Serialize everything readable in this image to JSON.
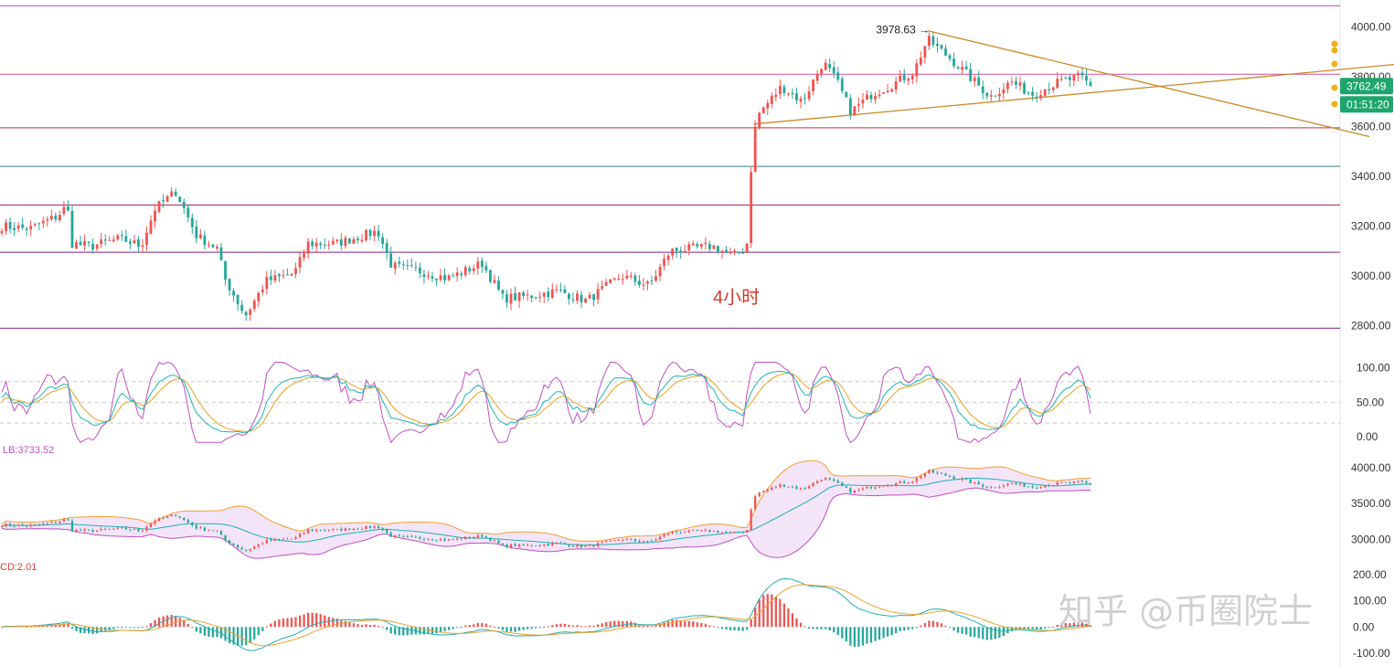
{
  "annotations": {
    "timeframe": "4小时",
    "high_label": "3978.63 →",
    "watermark": "知乎 @币圈院士",
    "current_price": "3762.49",
    "countdown": "01:51:20"
  },
  "colors": {
    "up": "#ef5350",
    "down": "#26a69a",
    "trendline": "#c9892a",
    "watermark": "#d0d0d0",
    "price_tag": "#1ea66e",
    "kdj_k": "#1fb5b5",
    "kdj_d": "#e8a020",
    "kdj_j": "#c050c0",
    "boll_fill": "#f3e4f8",
    "boll_upper": "#f0a030",
    "boll_lower": "#c050c0",
    "boll_mid": "#20b0b0",
    "macd_dif": "#20b0b0",
    "macd_dea": "#f0a030"
  },
  "chart_data": [
    {
      "type": "candlestick",
      "name": "price-4h",
      "y_ticks": [
        "4000.00",
        "3800.00",
        "3600.00",
        "3400.00",
        "3200.00",
        "3000.00",
        "2800.00"
      ],
      "ylim": [
        2780,
        4090
      ],
      "high_value": 3978.63,
      "last_value": 3762.49,
      "horizontal_levels": [
        {
          "value": 4085,
          "color": "#c050c0"
        },
        {
          "value": 3810,
          "color": "#d0509a"
        },
        {
          "value": 3595,
          "color": "#d03030"
        },
        {
          "value": 3440,
          "color": "#3a7a8a"
        },
        {
          "value": 3285,
          "color": "#a02060"
        },
        {
          "value": 3095,
          "color": "#7a2080"
        },
        {
          "value": 2790,
          "color": "#7a2080"
        }
      ],
      "trendlines": [
        {
          "from": [
            0.54,
            3610
          ],
          "to": [
            0.915,
            3805
          ]
        },
        {
          "from": [
            0.665,
            3985
          ],
          "to": [
            0.9,
            3670
          ]
        }
      ],
      "anchors": [
        [
          0,
          3200
        ],
        [
          0.02,
          3190
        ],
        [
          0.04,
          3240
        ],
        [
          0.047,
          3285
        ],
        [
          0.05,
          3130
        ],
        [
          0.065,
          3120
        ],
        [
          0.085,
          3150
        ],
        [
          0.1,
          3120
        ],
        [
          0.11,
          3270
        ],
        [
          0.125,
          3340
        ],
        [
          0.14,
          3160
        ],
        [
          0.155,
          3110
        ],
        [
          0.16,
          2990
        ],
        [
          0.175,
          2840
        ],
        [
          0.19,
          2980
        ],
        [
          0.21,
          3010
        ],
        [
          0.22,
          3130
        ],
        [
          0.24,
          3130
        ],
        [
          0.27,
          3180
        ],
        [
          0.28,
          3040
        ],
        [
          0.3,
          3020
        ],
        [
          0.32,
          2990
        ],
        [
          0.345,
          3050
        ],
        [
          0.36,
          2910
        ],
        [
          0.38,
          2920
        ],
        [
          0.4,
          2940
        ],
        [
          0.42,
          2900
        ],
        [
          0.445,
          3000
        ],
        [
          0.465,
          2960
        ],
        [
          0.48,
          3100
        ],
        [
          0.51,
          3120
        ],
        [
          0.525,
          3080
        ],
        [
          0.535,
          3110
        ],
        [
          0.538,
          3420
        ],
        [
          0.542,
          3640
        ],
        [
          0.56,
          3760
        ],
        [
          0.575,
          3700
        ],
        [
          0.59,
          3860
        ],
        [
          0.6,
          3780
        ],
        [
          0.61,
          3660
        ],
        [
          0.625,
          3730
        ],
        [
          0.64,
          3770
        ],
        [
          0.655,
          3820
        ],
        [
          0.665,
          3950
        ],
        [
          0.68,
          3880
        ],
        [
          0.695,
          3800
        ],
        [
          0.71,
          3720
        ],
        [
          0.725,
          3780
        ],
        [
          0.74,
          3730
        ],
        [
          0.76,
          3780
        ],
        [
          0.775,
          3800
        ],
        [
          0.782,
          3762.49
        ]
      ]
    },
    {
      "type": "line",
      "name": "kdj",
      "y_ticks": [
        "100.00",
        "50.00",
        "0.00"
      ],
      "ylim": [
        -5,
        110
      ],
      "series": [
        {
          "key": "k"
        },
        {
          "key": "d"
        },
        {
          "key": "j"
        }
      ]
    },
    {
      "type": "band",
      "name": "boll",
      "label": "LB:3733.52",
      "y_ticks": [
        "4000.00",
        "3500.00",
        "3000.00"
      ],
      "ylim": [
        2750,
        4150
      ]
    },
    {
      "type": "bar+line",
      "name": "macd",
      "label": "CD:2.01",
      "y_ticks": [
        "200.00",
        "100.00",
        "0.00",
        "-100.00"
      ],
      "ylim": [
        -125,
        225
      ]
    }
  ]
}
